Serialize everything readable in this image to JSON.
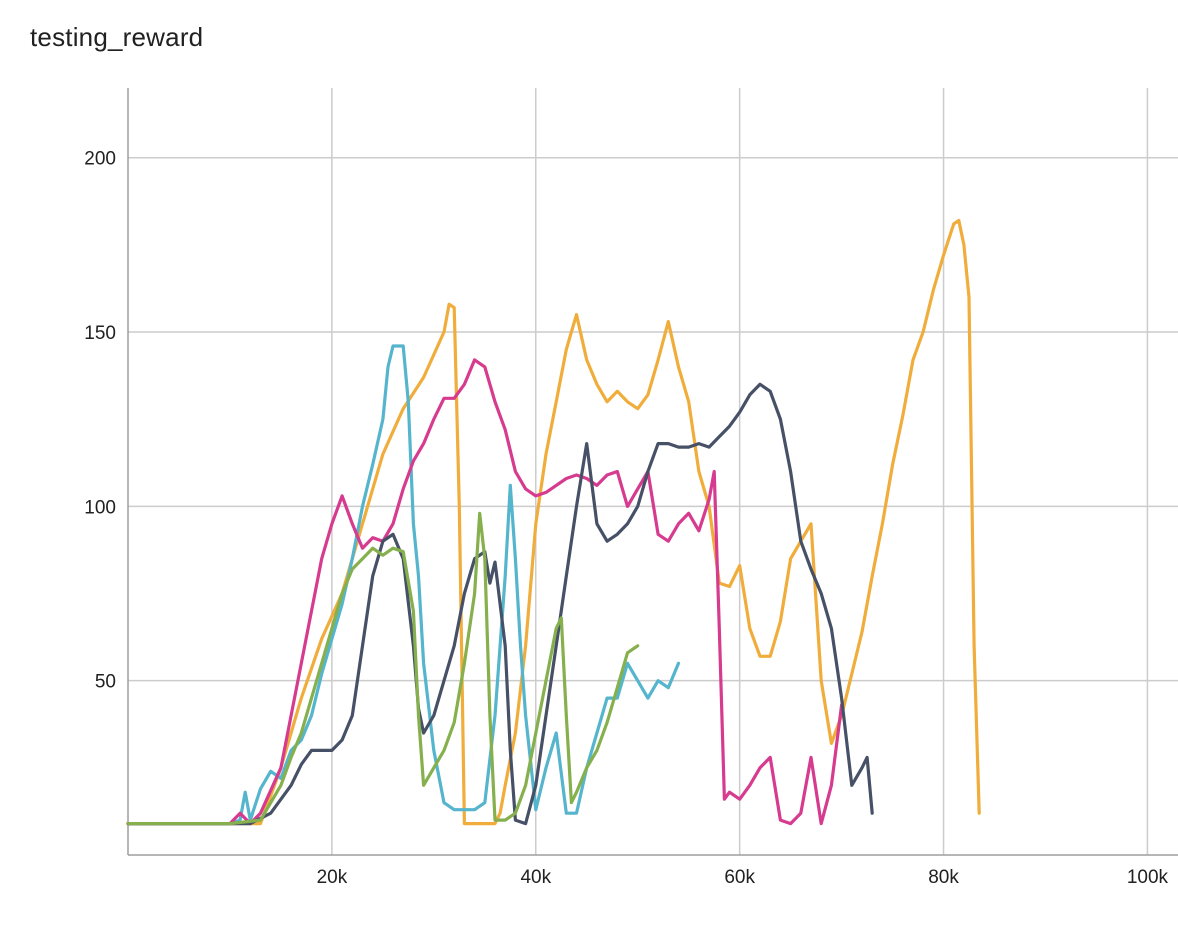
{
  "chart_data": {
    "type": "line",
    "title": "testing_reward",
    "xlabel": "",
    "ylabel": "",
    "xlim": [
      0,
      103000
    ],
    "ylim": [
      0,
      220
    ],
    "x_ticks": [
      20000,
      40000,
      60000,
      80000,
      100000
    ],
    "x_tick_labels": [
      "20k",
      "40k",
      "60k",
      "80k",
      "100k"
    ],
    "y_ticks": [
      50,
      100,
      150,
      200
    ],
    "y_tick_labels": [
      "50",
      "100",
      "150",
      "200"
    ],
    "grid": true,
    "legend": "none",
    "series": [
      {
        "color": "#f0ad3c",
        "points": [
          [
            0,
            9
          ],
          [
            5000,
            9
          ],
          [
            10000,
            9
          ],
          [
            13000,
            9
          ],
          [
            15000,
            25
          ],
          [
            17000,
            45
          ],
          [
            19000,
            62
          ],
          [
            21000,
            75
          ],
          [
            23000,
            95
          ],
          [
            25000,
            115
          ],
          [
            27000,
            128
          ],
          [
            29000,
            137
          ],
          [
            31000,
            150
          ],
          [
            31500,
            158
          ],
          [
            32000,
            157
          ],
          [
            32500,
            100
          ],
          [
            33000,
            9
          ],
          [
            34000,
            9
          ],
          [
            35000,
            9
          ],
          [
            36000,
            9
          ],
          [
            36500,
            12
          ],
          [
            37000,
            20
          ],
          [
            38000,
            35
          ],
          [
            39000,
            60
          ],
          [
            40000,
            95
          ],
          [
            41000,
            115
          ],
          [
            42000,
            130
          ],
          [
            43000,
            145
          ],
          [
            44000,
            155
          ],
          [
            45000,
            142
          ],
          [
            46000,
            135
          ],
          [
            47000,
            130
          ],
          [
            48000,
            133
          ],
          [
            49000,
            130
          ],
          [
            50000,
            128
          ],
          [
            51000,
            132
          ],
          [
            52000,
            142
          ],
          [
            53000,
            153
          ],
          [
            54000,
            140
          ],
          [
            55000,
            130
          ],
          [
            56000,
            110
          ],
          [
            57000,
            100
          ],
          [
            58000,
            78
          ],
          [
            59000,
            77
          ],
          [
            60000,
            83
          ],
          [
            61000,
            65
          ],
          [
            62000,
            57
          ],
          [
            63000,
            57
          ],
          [
            64000,
            67
          ],
          [
            65000,
            85
          ],
          [
            66000,
            90
          ],
          [
            67000,
            95
          ],
          [
            68000,
            50
          ],
          [
            69000,
            32
          ],
          [
            70000,
            40
          ],
          [
            71000,
            52
          ],
          [
            72000,
            64
          ],
          [
            73000,
            80
          ],
          [
            74000,
            95
          ],
          [
            75000,
            112
          ],
          [
            76000,
            126
          ],
          [
            77000,
            142
          ],
          [
            78000,
            150
          ],
          [
            79000,
            162
          ],
          [
            80000,
            172
          ],
          [
            81000,
            181
          ],
          [
            81500,
            182
          ],
          [
            82000,
            175
          ],
          [
            82500,
            160
          ],
          [
            83000,
            60
          ],
          [
            83500,
            12
          ]
        ]
      },
      {
        "color": "#55b5cd",
        "points": [
          [
            0,
            9
          ],
          [
            5000,
            9
          ],
          [
            10000,
            9
          ],
          [
            11000,
            10
          ],
          [
            11500,
            18
          ],
          [
            12000,
            10
          ],
          [
            13000,
            19
          ],
          [
            14000,
            24
          ],
          [
            15000,
            22
          ],
          [
            16000,
            30
          ],
          [
            17000,
            33
          ],
          [
            18000,
            40
          ],
          [
            19000,
            52
          ],
          [
            20000,
            62
          ],
          [
            21000,
            72
          ],
          [
            22000,
            85
          ],
          [
            23000,
            100
          ],
          [
            24000,
            112
          ],
          [
            25000,
            125
          ],
          [
            25500,
            140
          ],
          [
            26000,
            146
          ],
          [
            27000,
            146
          ],
          [
            27500,
            130
          ],
          [
            28000,
            95
          ],
          [
            28500,
            80
          ],
          [
            29000,
            55
          ],
          [
            30000,
            30
          ],
          [
            31000,
            15
          ],
          [
            32000,
            13
          ],
          [
            33000,
            13
          ],
          [
            34000,
            13
          ],
          [
            35000,
            15
          ],
          [
            36000,
            40
          ],
          [
            37000,
            80
          ],
          [
            37500,
            106
          ],
          [
            38000,
            85
          ],
          [
            38500,
            60
          ],
          [
            39000,
            40
          ],
          [
            40000,
            13
          ],
          [
            41000,
            25
          ],
          [
            42000,
            35
          ],
          [
            43000,
            12
          ],
          [
            44000,
            12
          ],
          [
            45000,
            25
          ],
          [
            46000,
            35
          ],
          [
            47000,
            45
          ],
          [
            48000,
            45
          ],
          [
            49000,
            55
          ],
          [
            50000,
            50
          ],
          [
            51000,
            45
          ],
          [
            52000,
            50
          ],
          [
            53000,
            48
          ],
          [
            54000,
            55
          ]
        ]
      },
      {
        "color": "#d63b8f",
        "points": [
          [
            0,
            9
          ],
          [
            5000,
            9
          ],
          [
            10000,
            9
          ],
          [
            11000,
            12
          ],
          [
            12000,
            9
          ],
          [
            13000,
            12
          ],
          [
            15000,
            25
          ],
          [
            16000,
            40
          ],
          [
            17000,
            55
          ],
          [
            18000,
            70
          ],
          [
            19000,
            85
          ],
          [
            20000,
            95
          ],
          [
            21000,
            103
          ],
          [
            22000,
            95
          ],
          [
            23000,
            88
          ],
          [
            24000,
            91
          ],
          [
            25000,
            90
          ],
          [
            26000,
            95
          ],
          [
            27000,
            105
          ],
          [
            28000,
            113
          ],
          [
            29000,
            118
          ],
          [
            30000,
            125
          ],
          [
            31000,
            131
          ],
          [
            32000,
            131
          ],
          [
            33000,
            135
          ],
          [
            34000,
            142
          ],
          [
            35000,
            140
          ],
          [
            36000,
            130
          ],
          [
            37000,
            122
          ],
          [
            38000,
            110
          ],
          [
            39000,
            105
          ],
          [
            40000,
            103
          ],
          [
            41000,
            104
          ],
          [
            42000,
            106
          ],
          [
            43000,
            108
          ],
          [
            44000,
            109
          ],
          [
            45000,
            108
          ],
          [
            46000,
            106
          ],
          [
            47000,
            109
          ],
          [
            48000,
            110
          ],
          [
            49000,
            100
          ],
          [
            50000,
            105
          ],
          [
            51000,
            110
          ],
          [
            52000,
            92
          ],
          [
            53000,
            90
          ],
          [
            54000,
            95
          ],
          [
            55000,
            98
          ],
          [
            56000,
            93
          ],
          [
            57000,
            102
          ],
          [
            57500,
            110
          ],
          [
            58000,
            65
          ],
          [
            58500,
            16
          ],
          [
            59000,
            18
          ],
          [
            60000,
            16
          ],
          [
            61000,
            20
          ],
          [
            62000,
            25
          ],
          [
            63000,
            28
          ],
          [
            64000,
            10
          ],
          [
            65000,
            9
          ],
          [
            66000,
            12
          ],
          [
            67000,
            28
          ],
          [
            68000,
            9
          ],
          [
            69000,
            20
          ],
          [
            70000,
            43
          ]
        ]
      },
      {
        "color": "#465066",
        "points": [
          [
            0,
            9
          ],
          [
            5000,
            9
          ],
          [
            10000,
            9
          ],
          [
            12000,
            9
          ],
          [
            14000,
            12
          ],
          [
            16000,
            20
          ],
          [
            17000,
            26
          ],
          [
            18000,
            30
          ],
          [
            19000,
            30
          ],
          [
            20000,
            30
          ],
          [
            21000,
            33
          ],
          [
            22000,
            40
          ],
          [
            23000,
            60
          ],
          [
            24000,
            80
          ],
          [
            25000,
            90
          ],
          [
            26000,
            92
          ],
          [
            27000,
            85
          ],
          [
            28000,
            60
          ],
          [
            28500,
            42
          ],
          [
            29000,
            35
          ],
          [
            30000,
            40
          ],
          [
            31000,
            50
          ],
          [
            32000,
            60
          ],
          [
            33000,
            75
          ],
          [
            34000,
            85
          ],
          [
            35000,
            87
          ],
          [
            35500,
            78
          ],
          [
            36000,
            84
          ],
          [
            37000,
            60
          ],
          [
            37500,
            30
          ],
          [
            38000,
            10
          ],
          [
            39000,
            9
          ],
          [
            40000,
            20
          ],
          [
            41000,
            40
          ],
          [
            42000,
            60
          ],
          [
            43000,
            80
          ],
          [
            44000,
            100
          ],
          [
            45000,
            118
          ],
          [
            46000,
            95
          ],
          [
            47000,
            90
          ],
          [
            48000,
            92
          ],
          [
            49000,
            95
          ],
          [
            50000,
            100
          ],
          [
            51000,
            110
          ],
          [
            52000,
            118
          ],
          [
            53000,
            118
          ],
          [
            54000,
            117
          ],
          [
            55000,
            117
          ],
          [
            56000,
            118
          ],
          [
            57000,
            117
          ],
          [
            58000,
            120
          ],
          [
            59000,
            123
          ],
          [
            60000,
            127
          ],
          [
            61000,
            132
          ],
          [
            62000,
            135
          ],
          [
            63000,
            133
          ],
          [
            64000,
            125
          ],
          [
            65000,
            110
          ],
          [
            66000,
            90
          ],
          [
            67000,
            82
          ],
          [
            68000,
            75
          ],
          [
            69000,
            65
          ],
          [
            70000,
            45
          ],
          [
            71000,
            20
          ],
          [
            72000,
            25
          ],
          [
            72500,
            28
          ],
          [
            73000,
            12
          ]
        ]
      },
      {
        "color": "#86b04d",
        "points": [
          [
            0,
            9
          ],
          [
            5000,
            9
          ],
          [
            10000,
            9
          ],
          [
            13000,
            10
          ],
          [
            15000,
            20
          ],
          [
            16000,
            28
          ],
          [
            17000,
            35
          ],
          [
            18000,
            45
          ],
          [
            19000,
            55
          ],
          [
            20000,
            65
          ],
          [
            21000,
            75
          ],
          [
            22000,
            82
          ],
          [
            23000,
            85
          ],
          [
            24000,
            88
          ],
          [
            25000,
            86
          ],
          [
            26000,
            88
          ],
          [
            27000,
            87
          ],
          [
            28000,
            70
          ],
          [
            28500,
            40
          ],
          [
            29000,
            20
          ],
          [
            30000,
            25
          ],
          [
            31000,
            30
          ],
          [
            32000,
            38
          ],
          [
            33000,
            55
          ],
          [
            34000,
            75
          ],
          [
            34500,
            98
          ],
          [
            35000,
            85
          ],
          [
            35500,
            40
          ],
          [
            36000,
            10
          ],
          [
            37000,
            10
          ],
          [
            38000,
            12
          ],
          [
            39000,
            20
          ],
          [
            40000,
            35
          ],
          [
            41000,
            50
          ],
          [
            42000,
            65
          ],
          [
            42500,
            68
          ],
          [
            43000,
            40
          ],
          [
            43500,
            15
          ],
          [
            44000,
            18
          ],
          [
            45000,
            25
          ],
          [
            46000,
            30
          ],
          [
            47000,
            38
          ],
          [
            48000,
            48
          ],
          [
            49000,
            58
          ],
          [
            50000,
            60
          ]
        ]
      }
    ]
  }
}
